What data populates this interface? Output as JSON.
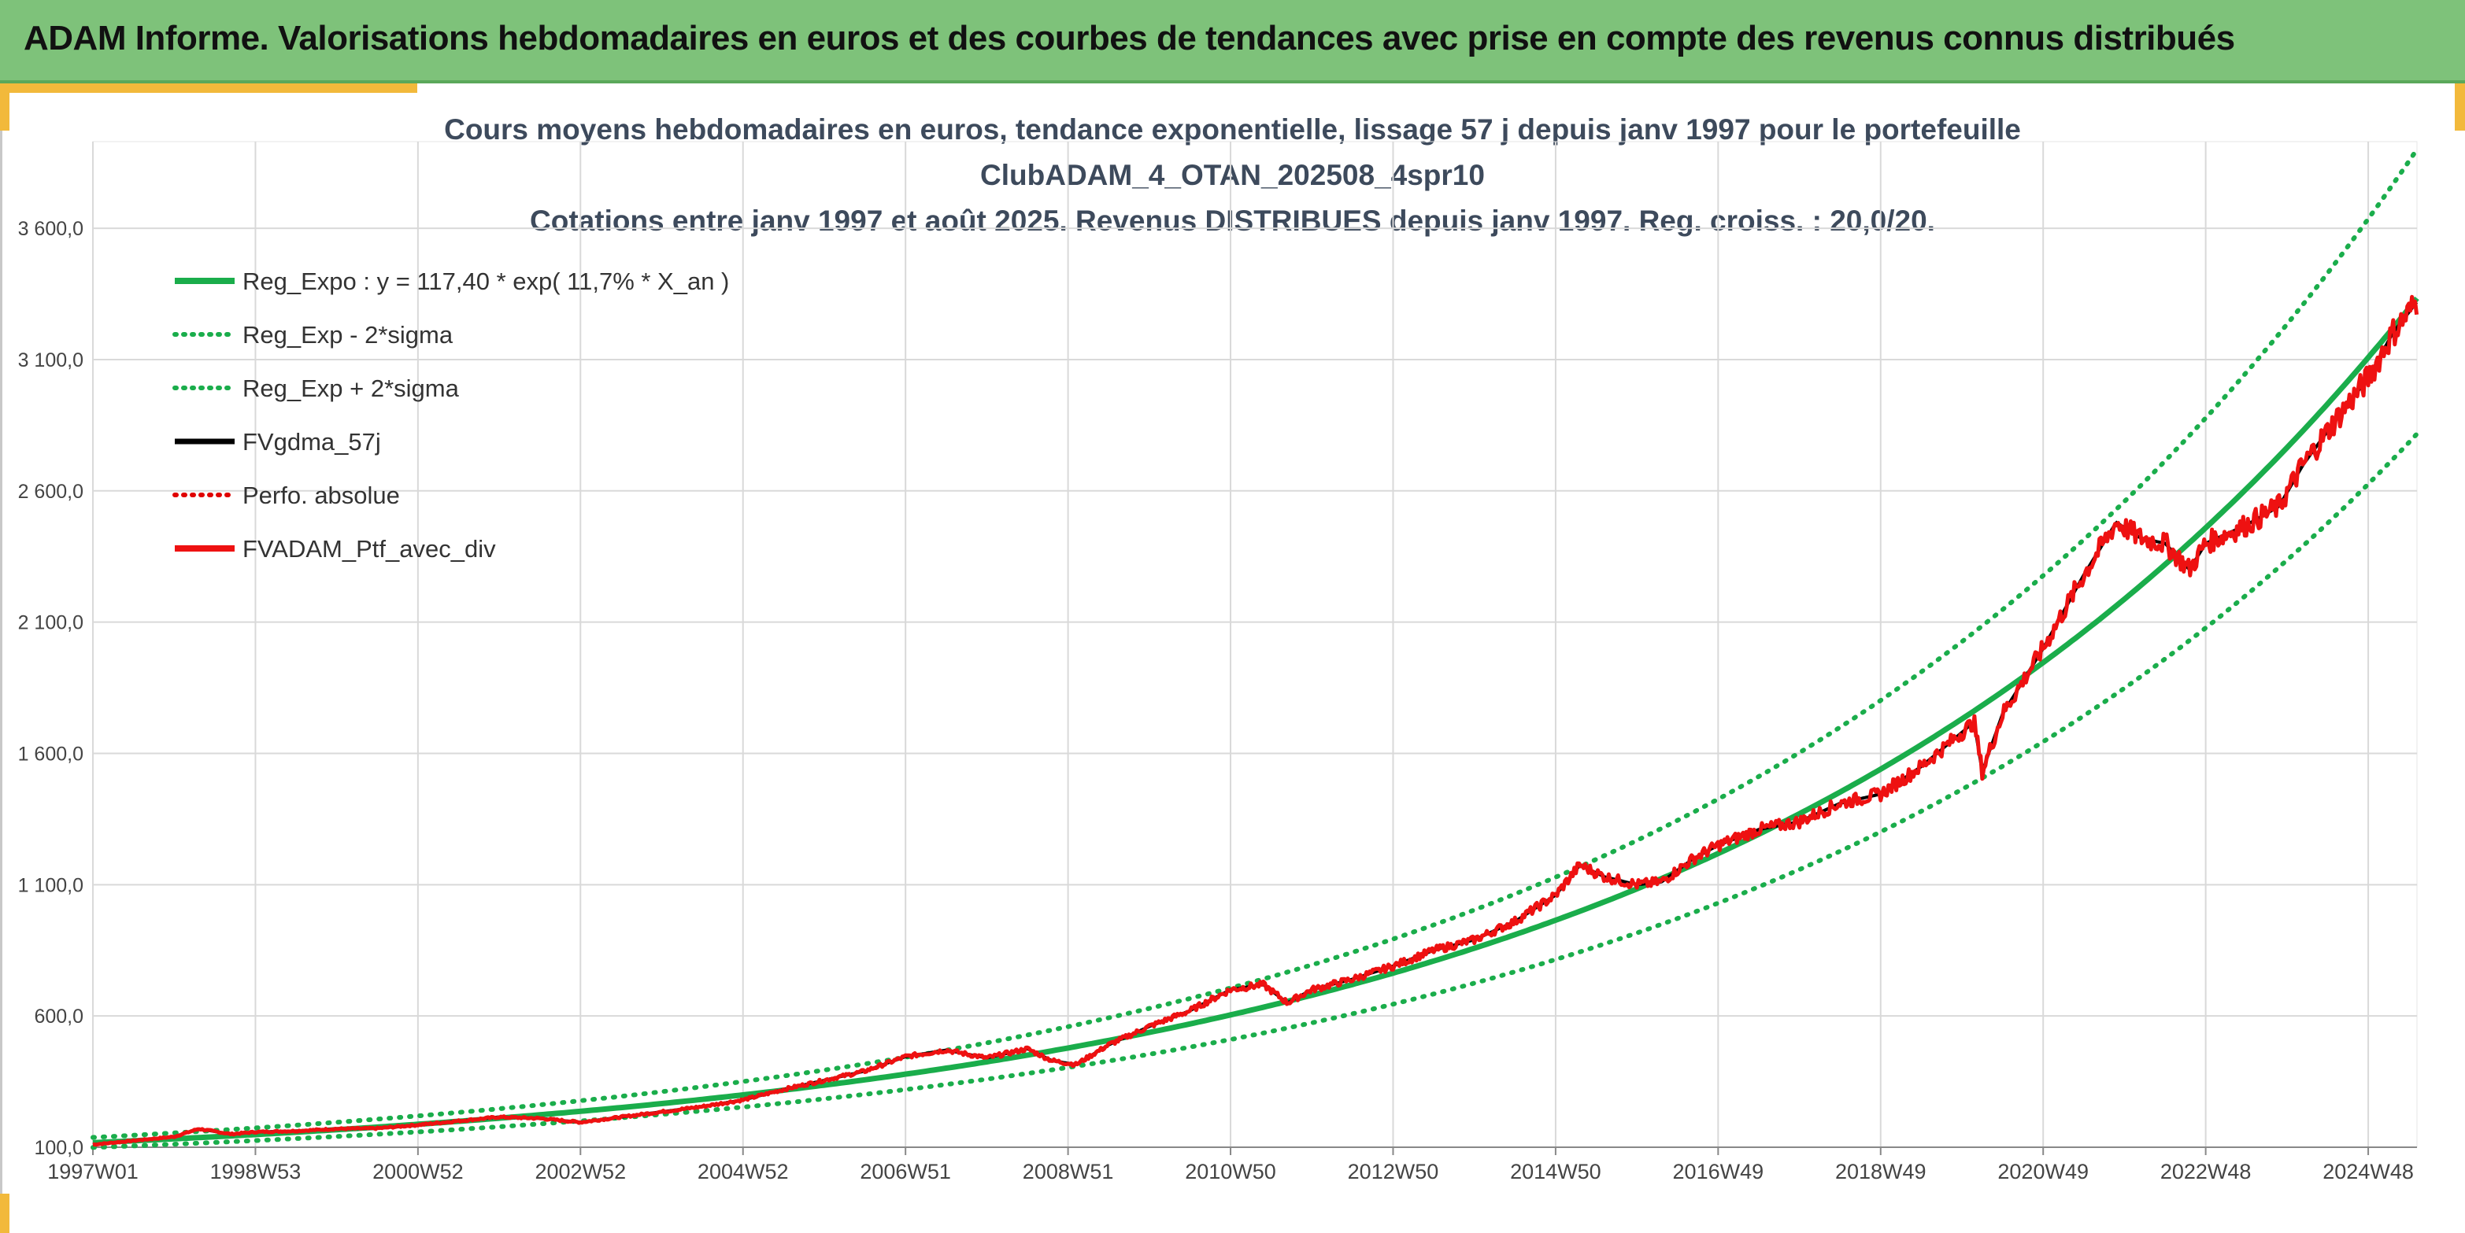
{
  "header": {
    "title": "ADAM Informe. Valorisations hebdomadaires en euros et des courbes de tendances avec prise en compte des revenus connus distribués"
  },
  "colors": {
    "header_bg": "#7ec27a",
    "accent": "#f2b93b",
    "trend": "#1aad4b",
    "band": "#1aad4b",
    "smooth": "#000000",
    "abs_perf": "#e00000",
    "portfolio": "#ee1111"
  },
  "chart_data": {
    "type": "line",
    "title_lines": [
      "Cours moyens hebdomadaires en euros, tendance exponentielle, lissage 57 j depuis janv 1997 pour le portefeuille",
      "ClubADAM_4_OTAN_202508_4spr10",
      "Cotations entre janv 1997 et août 2025. Revenus DISTRIBUES depuis janv 1997. Reg. croiss. : 20,0/20."
    ],
    "x_range_years": [
      1997.0,
      2025.6
    ],
    "ylim": [
      100,
      3900
    ],
    "y_ticks": [
      100,
      600,
      1100,
      1600,
      2100,
      2600,
      3100,
      3600
    ],
    "y_tick_labels": [
      "100,0",
      "600,0",
      "1 100,0",
      "1 600,0",
      "2 100,0",
      "2 600,0",
      "3 100,0",
      "3 600,0"
    ],
    "x_ticks": [
      1997.0,
      1999.0,
      2001.0,
      2003.0,
      2005.0,
      2007.0,
      2009.0,
      2011.0,
      2013.0,
      2015.0,
      2017.0,
      2019.0,
      2021.0,
      2023.0,
      2025.0
    ],
    "x_tick_labels": [
      "1997W01",
      "1998W53",
      "2000W52",
      "2002W52",
      "2004W52",
      "2006W51",
      "2008W51",
      "2010W50",
      "2012W50",
      "2014W50",
      "2016W49",
      "2018W49",
      "2020W49",
      "2022W48",
      "2024W48"
    ],
    "grid": true,
    "legend_position": "top-left",
    "trend": {
      "a": 117.4,
      "growth": 0.117
    },
    "band_factors": [
      0.845,
      1.17
    ],
    "series": [
      {
        "name": "Reg_Expo : y = 117,40 * exp( 11,7% *  X_an )",
        "style": "solid-thick",
        "color": "#1aad4b"
      },
      {
        "name": "Reg_Exp - 2*sigma",
        "style": "dotted",
        "color": "#1aad4b"
      },
      {
        "name": "Reg_Exp + 2*sigma",
        "style": "dotted",
        "color": "#1aad4b"
      },
      {
        "name": "FVgdma_57j",
        "style": "solid",
        "color": "#000000"
      },
      {
        "name": "Perfo. absolue",
        "style": "dotted-red",
        "color": "#e00000"
      },
      {
        "name": "FVADAM_Ptf_avec_div",
        "style": "solid-thick",
        "color": "#ee1111"
      }
    ],
    "portfolio_points": [
      [
        1997.0,
        110
      ],
      [
        1997.5,
        125
      ],
      [
        1998.0,
        140
      ],
      [
        1998.3,
        170
      ],
      [
        1998.7,
        150
      ],
      [
        1999.0,
        158
      ],
      [
        1999.5,
        162
      ],
      [
        2000.0,
        170
      ],
      [
        2000.5,
        172
      ],
      [
        2001.0,
        185
      ],
      [
        2001.5,
        200
      ],
      [
        2002.0,
        215
      ],
      [
        2002.5,
        210
      ],
      [
        2003.0,
        195
      ],
      [
        2003.5,
        215
      ],
      [
        2004.0,
        235
      ],
      [
        2004.5,
        255
      ],
      [
        2005.0,
        280
      ],
      [
        2005.5,
        320
      ],
      [
        2006.0,
        355
      ],
      [
        2006.5,
        390
      ],
      [
        2007.0,
        445
      ],
      [
        2007.5,
        470
      ],
      [
        2008.0,
        440
      ],
      [
        2008.5,
        475
      ],
      [
        2008.8,
        430
      ],
      [
        2009.1,
        415
      ],
      [
        2009.5,
        490
      ],
      [
        2010.0,
        560
      ],
      [
        2010.5,
        620
      ],
      [
        2011.0,
        700
      ],
      [
        2011.4,
        720
      ],
      [
        2011.7,
        650
      ],
      [
        2012.0,
        700
      ],
      [
        2012.5,
        740
      ],
      [
        2013.0,
        790
      ],
      [
        2013.5,
        850
      ],
      [
        2014.0,
        890
      ],
      [
        2014.5,
        960
      ],
      [
        2015.0,
        1060
      ],
      [
        2015.3,
        1175
      ],
      [
        2015.6,
        1130
      ],
      [
        2016.0,
        1100
      ],
      [
        2016.3,
        1110
      ],
      [
        2016.7,
        1200
      ],
      [
        2017.0,
        1250
      ],
      [
        2017.5,
        1310
      ],
      [
        2018.0,
        1340
      ],
      [
        2018.5,
        1410
      ],
      [
        2019.0,
        1445
      ],
      [
        2019.5,
        1550
      ],
      [
        2020.0,
        1680
      ],
      [
        2020.15,
        1720
      ],
      [
        2020.25,
        1530
      ],
      [
        2020.5,
        1750
      ],
      [
        2021.0,
        2000
      ],
      [
        2021.5,
        2280
      ],
      [
        2021.9,
        2480
      ],
      [
        2022.2,
        2420
      ],
      [
        2022.5,
        2400
      ],
      [
        2022.8,
        2300
      ],
      [
        2023.0,
        2400
      ],
      [
        2023.5,
        2470
      ],
      [
        2023.9,
        2540
      ],
      [
        2024.2,
        2700
      ],
      [
        2024.6,
        2870
      ],
      [
        2025.0,
        3030
      ],
      [
        2025.3,
        3200
      ],
      [
        2025.6,
        3320
      ]
    ]
  }
}
